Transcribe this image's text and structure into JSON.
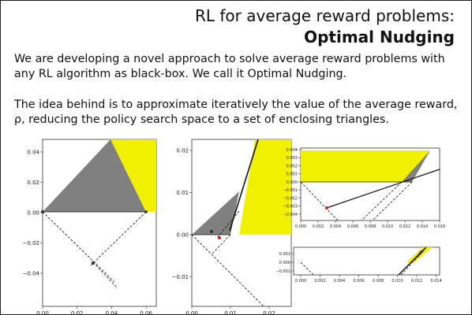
{
  "slide": {
    "title_line1": "RL for average reward problems:",
    "title_line2": "Optimal Nudging",
    "paragraph1": "We are developing a novel approach to solve average reward problems with any RL algorithm as black-box. We call it Optimal Nudging.",
    "paragraph2": "The idea behind is to approximate iteratively the value of the average reward, ρ, reducing the policy search space to a set of enclosing triangles."
  },
  "colors": {
    "triangle": "#808080",
    "region": "#f0f000",
    "line": "#000000",
    "marker": "#cc2222"
  },
  "chart_data": [
    {
      "type": "geometric-plot",
      "x_ticks": [
        "0.00",
        "0.02",
        "0.04",
        "0.06"
      ],
      "y_ticks": [
        "0.04",
        "0.02",
        "0.00",
        "−0.02",
        "−0.04"
      ],
      "xlim": [
        0,
        0.072
      ],
      "ylim": [
        -0.05,
        0.047
      ]
    },
    {
      "type": "geometric-plot",
      "x_ticks": [
        "0.00",
        "0.01",
        "0.02"
      ],
      "y_ticks": [
        "0.02",
        "0.01",
        "0.00",
        "−0.01",
        "−0.02"
      ],
      "xlim": [
        0,
        0.025
      ],
      "ylim": [
        -0.025,
        0.025
      ]
    },
    {
      "type": "geometric-plot",
      "x_ticks": [
        "0.000",
        "0.002",
        "0.004",
        "0.006",
        "0.008",
        "0.010",
        "0.012",
        "0.014",
        "0.016"
      ],
      "y_ticks": [
        "0.004",
        "0.003",
        "0.002",
        "0.001",
        "0.000",
        "−0.001",
        "−0.002",
        "−0.003",
        "−0.004"
      ],
      "xlim": [
        0,
        0.016
      ],
      "ylim": [
        -0.0045,
        0.0045
      ]
    },
    {
      "type": "geometric-plot",
      "x_ticks": [
        "0.000",
        "0.002",
        "0.004",
        "0.006",
        "0.008",
        "0.010",
        "0.012",
        "0.014"
      ],
      "y_ticks": [
        "0.001",
        "0.000",
        "−0.001"
      ],
      "xlim": [
        0,
        0.015
      ],
      "ylim": [
        -0.002,
        0.0015
      ]
    }
  ]
}
